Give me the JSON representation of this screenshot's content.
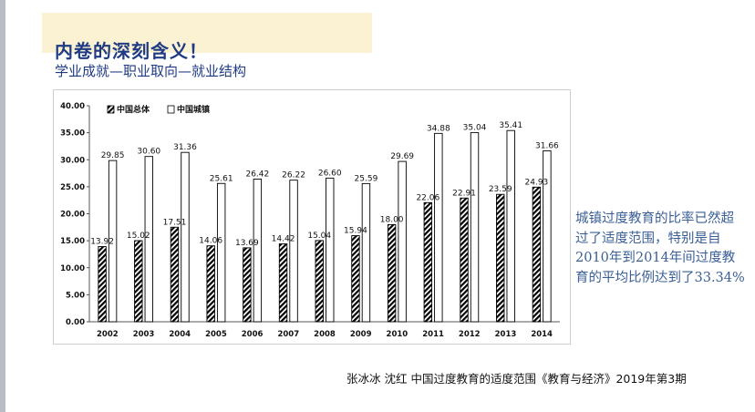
{
  "slide": {
    "title": "内卷的深刻含义！",
    "subtitle": "学业成就—职业取向—就业结构",
    "note": "城镇过度教育的比率已然超过了适度范围，特别是自2010年到2014年间过度教育的平均比例达到了33.34%",
    "source": "张冰冰 沈红 中国过度教育的适度范围《教育与经济》2019年第3期"
  },
  "colors": {
    "title": "#1f3b83",
    "note": "#3a5f95",
    "title_band": "#fbf2d3",
    "bar_outline": "#000000",
    "bar_fill_urban": "#ffffff",
    "bar_fill_total": "hatched-black"
  },
  "chart_data": {
    "type": "bar",
    "title": "",
    "xlabel": "",
    "ylabel": "",
    "categories": [
      "2002",
      "2003",
      "2004",
      "2005",
      "2006",
      "2007",
      "2008",
      "2009",
      "2010",
      "2011",
      "2012",
      "2013",
      "2014"
    ],
    "series": [
      {
        "name": "中国总体",
        "pattern": "hatched",
        "values": [
          13.92,
          15.02,
          17.51,
          14.06,
          13.69,
          14.42,
          15.04,
          15.94,
          18.0,
          22.06,
          22.91,
          23.59,
          24.93
        ]
      },
      {
        "name": "中国城镇",
        "pattern": "white",
        "values": [
          29.85,
          30.6,
          31.36,
          25.61,
          26.42,
          26.22,
          26.6,
          25.59,
          29.69,
          34.88,
          35.04,
          35.41,
          31.66
        ]
      }
    ],
    "data_labels": [
      [
        "13.92",
        "15.02",
        "17.51",
        "14.06",
        "13.69",
        "14.42",
        "15.04",
        "15.94",
        "18.00",
        "22.06",
        "22.91",
        "23.59",
        "24.93"
      ],
      [
        "29.85",
        "30.60",
        "31.36",
        "25.61",
        "26.42",
        "26.22",
        "26.60",
        "25.59",
        "29.69",
        "34.88",
        "35.04",
        "35.41",
        "31.66"
      ]
    ],
    "yticks": [
      "0.00",
      "5.00",
      "10.00",
      "15.00",
      "20.00",
      "25.00",
      "30.00",
      "35.00",
      "40.00"
    ],
    "ylim": [
      0,
      40
    ],
    "grid": false,
    "legend_position": "top-left"
  }
}
